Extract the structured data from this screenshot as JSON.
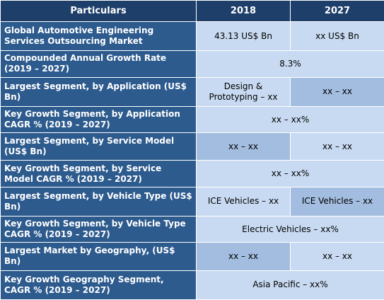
{
  "header": {
    "col1": "Particulars",
    "col2": "2018",
    "col3": "2027"
  },
  "rows": [
    {
      "label": "Global Automotive Engineering Services Outsourcing Market",
      "v2018": "43.13 US$ Bn",
      "v2027": "xx US$ Bn"
    },
    {
      "label": "Compounded Annual Growth Rate (2019 – 2027)",
      "merged": "8.3%"
    },
    {
      "label": "Largest Segment, by Application (US$ Bn)",
      "v2018": "Design & Prototyping – xx",
      "v2027": "xx – xx"
    },
    {
      "label": "Key Growth Segment, by Application CAGR % (2019 – 2027)",
      "merged": "xx – xx%"
    },
    {
      "label": "Largest Segment, by Service Model (US$ Bn)",
      "v2018": "xx – xx",
      "v2027": "xx – xx"
    },
    {
      "label": "Key Growth Segment, by Service Model  CAGR % (2019 – 2027)",
      "merged": "xx – xx%"
    },
    {
      "label": "Largest Segment, by Vehicle Type (US$ Bn)",
      "v2018": "ICE Vehicles – xx",
      "v2027": "ICE Vehicles – xx"
    },
    {
      "label": "Key Growth Segment, by Vehicle Type CAGR % (2019 – 2027)",
      "merged": "Electric Vehicles – xx%"
    },
    {
      "label": "Largest Market by Geography, (US$ Bn)",
      "v2018": "xx – xx",
      "v2027": "xx – xx"
    },
    {
      "label": "Key Growth Geography Segment, CAGR % (2019 – 2027)",
      "merged": "Asia Pacific – xx%"
    }
  ],
  "colors": {
    "header_bg": "#1e3f6a",
    "label_bg": "#2d5b8e",
    "value_dark_bg": "#a3bde0",
    "value_light_bg": "#c8daf1"
  }
}
